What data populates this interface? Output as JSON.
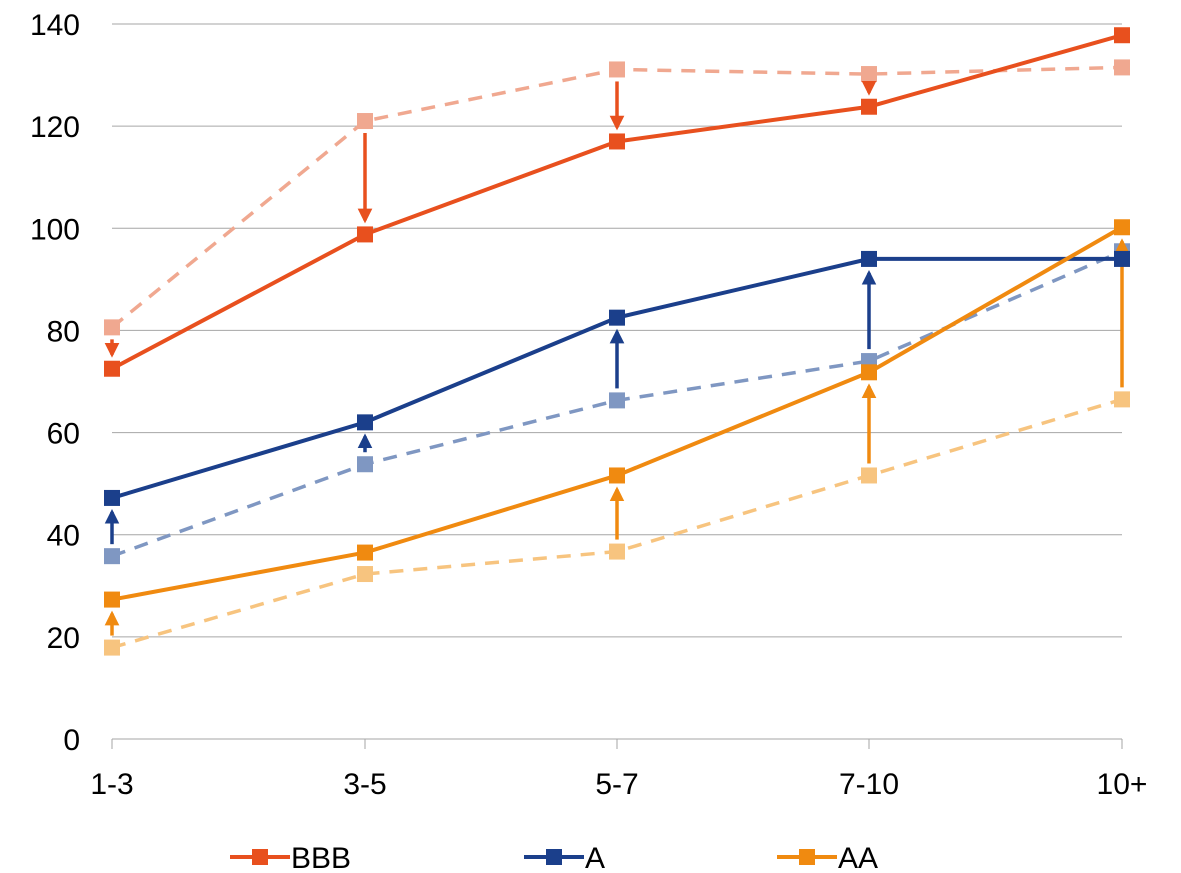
{
  "chart_data": {
    "type": "line",
    "categories": [
      "1-3",
      "3-5",
      "5-7",
      "7-10",
      "10+"
    ],
    "ylim": [
      0,
      140
    ],
    "yticks": [
      0,
      20,
      40,
      60,
      80,
      100,
      120,
      140
    ],
    "grid": true,
    "legend_position": "bottom",
    "series": [
      {
        "name": "BBB",
        "color": "#E8501E",
        "style": "solid",
        "values": [
          72.5,
          98.8,
          117,
          123.8,
          137.8
        ]
      },
      {
        "name": "A",
        "color": "#1B3F8B",
        "style": "solid",
        "values": [
          47.2,
          62,
          82.5,
          94,
          94
        ]
      },
      {
        "name": "AA",
        "color": "#F08A10",
        "style": "solid",
        "values": [
          27.3,
          36.5,
          51.6,
          71.8,
          100.2
        ]
      }
    ],
    "comparison_series": [
      {
        "color": "#F0A890",
        "style": "dashed",
        "values": [
          80.6,
          121,
          131.1,
          130.2,
          131.5
        ]
      },
      {
        "color": "#7F97C2",
        "style": "dashed",
        "values": [
          35.8,
          53.8,
          66.3,
          74,
          95.5
        ]
      },
      {
        "color": "#F7C47F",
        "style": "dashed",
        "values": [
          17.9,
          32.3,
          36.7,
          51.6,
          66.5
        ]
      }
    ],
    "arrows": [
      {
        "category": "1-3",
        "from": 80.6,
        "to": 72.5,
        "color": "#E8501E"
      },
      {
        "category": "3-5",
        "from": 121,
        "to": 98.8,
        "color": "#E8501E"
      },
      {
        "category": "5-7",
        "from": 131.1,
        "to": 117,
        "color": "#E8501E"
      },
      {
        "category": "7-10",
        "from": 130.2,
        "to": 123.8,
        "color": "#E8501E"
      },
      {
        "category": "1-3",
        "from": 35.8,
        "to": 47.2,
        "color": "#1B3F8B"
      },
      {
        "category": "3-5",
        "from": 53.8,
        "to": 62,
        "color": "#1B3F8B"
      },
      {
        "category": "5-7",
        "from": 66.3,
        "to": 82.5,
        "color": "#1B3F8B"
      },
      {
        "category": "7-10",
        "from": 74,
        "to": 94,
        "color": "#1B3F8B"
      },
      {
        "category": "1-3",
        "from": 17.9,
        "to": 27.3,
        "color": "#F08A10"
      },
      {
        "category": "5-7",
        "from": 36.7,
        "to": 51.6,
        "color": "#F08A10"
      },
      {
        "category": "7-10",
        "from": 51.6,
        "to": 71.8,
        "color": "#F08A10"
      },
      {
        "category": "10+",
        "from": 66.5,
        "to": 100.2,
        "color": "#F08A10"
      }
    ]
  }
}
